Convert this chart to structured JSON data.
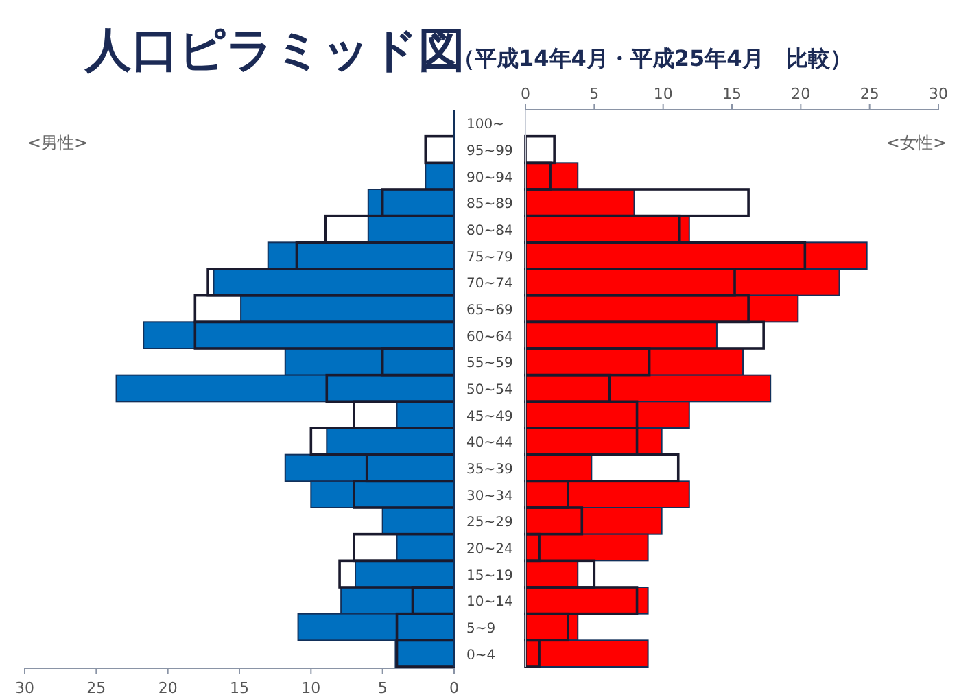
{
  "chart_data": [
    {
      "type": "bar",
      "orientation": "horizontal",
      "title": "人口ピラミッド図",
      "categories": [
        "100~",
        "95~99",
        "90~94",
        "85~89",
        "80~84",
        "75~79",
        "70~74",
        "65~69",
        "60~64",
        "55~59",
        "50~54",
        "45~49",
        "40~44",
        "35~39",
        "30~34",
        "25~29",
        "20~24",
        "15~19",
        "10~14",
        "5~9",
        "0~4"
      ],
      "series": [
        {
          "color": "#0070c0",
          "values": [
            null,
            0,
            2,
            6,
            6,
            13,
            16.8,
            14.9,
            21.7,
            11.8,
            23.6,
            4,
            8.9,
            11.8,
            10,
            5,
            4,
            6.9,
            7.9,
            10.9,
            4.1
          ]
        },
        {
          "color": "#1a1a2e",
          "values": [
            null,
            2,
            null,
            5,
            9,
            11,
            17.2,
            18.1,
            18.1,
            5,
            8.9,
            7,
            10,
            6.1,
            7,
            null,
            7,
            8,
            2.9,
            4,
            4
          ]
        }
      ],
      "xlim": [
        30,
        0
      ],
      "xticks": [
        30,
        25,
        20,
        15,
        10,
        5,
        0
      ],
      "annotations": [
        "<男性>"
      ]
    },
    {
      "type": "bar",
      "orientation": "horizontal",
      "subtitle": "（平成14年4月・平成25年4月　比較）",
      "categories": [
        null,
        null,
        null,
        null,
        null,
        null,
        null,
        null,
        null,
        null,
        null,
        null,
        null,
        null,
        null,
        null,
        null,
        null,
        null,
        null,
        null
      ],
      "series": [
        {
          "color": "#ff0000",
          "values": [
            null,
            0,
            3.8,
            7.9,
            11.9,
            24.8,
            22.8,
            19.8,
            13.9,
            15.8,
            17.8,
            11.9,
            9.9,
            4.8,
            11.9,
            9.9,
            8.9,
            3.8,
            8.9,
            3.8,
            8.9
          ]
        },
        {
          "color": "#1a1a2e",
          "values": [
            null,
            2.1,
            1.8,
            16.2,
            11.2,
            20.3,
            15.2,
            16.2,
            17.3,
            9,
            6.1,
            8.1,
            8.1,
            11.1,
            3.1,
            4.1,
            1,
            5,
            8.1,
            3.1,
            1
          ]
        }
      ],
      "xlim": [
        0,
        30
      ],
      "xticks": [
        0,
        5,
        10,
        15,
        20,
        25,
        30
      ],
      "tick_labels": "x",
      "annotations": [
        "<女性>"
      ]
    }
  ]
}
